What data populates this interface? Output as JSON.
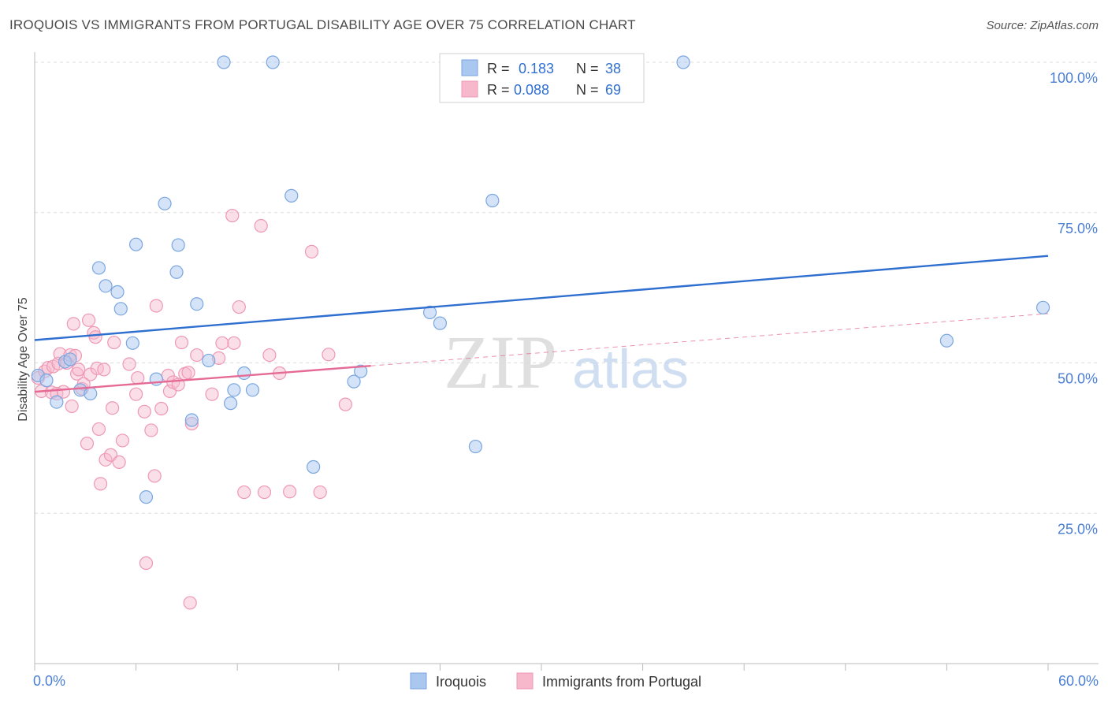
{
  "header": {
    "title": "IROQUOIS VS IMMIGRANTS FROM PORTUGAL DISABILITY AGE OVER 75 CORRELATION CHART",
    "source": "Source: ZipAtlas.com"
  },
  "watermark": {
    "zip": "ZIP",
    "atlas": "atlas"
  },
  "legend_box": {
    "rows": [
      {
        "r_label": "R =",
        "r_value": "0.183",
        "n_label": "N =",
        "n_value": "38"
      },
      {
        "r_label": "R =",
        "r_value": "0.088",
        "n_label": "N =",
        "n_value": "69"
      }
    ]
  },
  "bottom_legend": {
    "items": [
      {
        "label": "Iroquois"
      },
      {
        "label": "Immigrants from Portugal"
      }
    ]
  },
  "colors": {
    "iroquois_fill": "#a9c7ef",
    "iroquois_stroke": "#7aa6e0",
    "iroquois_line": "#2f6fd0",
    "portugal_fill": "#f7b8cc",
    "portugal_stroke": "#ee98b4",
    "portugal_line": "#e56b96",
    "tick_label": "#4a7fd4",
    "grid": "#dddddd"
  },
  "chart_data": {
    "type": "scatter",
    "title": "IROQUOIS VS IMMIGRANTS FROM PORTUGAL DISABILITY AGE OVER 75 CORRELATION CHART",
    "xlabel": "",
    "ylabel": "Disability Age Over 75",
    "xlim": [
      0,
      60
    ],
    "ylim": [
      0,
      101
    ],
    "x_tick_labels": [
      "0.0%",
      "60.0%"
    ],
    "y_tick_labels": [
      "25.0%",
      "50.0%",
      "75.0%",
      "100.0%"
    ],
    "y_ticks": [
      25,
      50,
      75,
      100
    ],
    "grid": true,
    "legend_position": "top-center",
    "series": [
      {
        "name": "Iroquois",
        "R": 0.183,
        "N": 38,
        "trend": {
          "x": [
            0,
            60
          ],
          "y": [
            53.8,
            67.8
          ],
          "style": "solid"
        },
        "points": [
          [
            0.2,
            47.9
          ],
          [
            0.7,
            47.1
          ],
          [
            1.3,
            43.5
          ],
          [
            1.8,
            50.2
          ],
          [
            2.1,
            50.6
          ],
          [
            2.7,
            45.5
          ],
          [
            3.3,
            44.9
          ],
          [
            3.8,
            65.8
          ],
          [
            4.2,
            62.8
          ],
          [
            4.9,
            61.8
          ],
          [
            5.1,
            59.0
          ],
          [
            5.8,
            53.3
          ],
          [
            6.0,
            69.7
          ],
          [
            6.6,
            27.7
          ],
          [
            7.2,
            47.3
          ],
          [
            7.7,
            76.5
          ],
          [
            8.4,
            65.1
          ],
          [
            8.5,
            69.6
          ],
          [
            9.3,
            40.5
          ],
          [
            9.6,
            59.8
          ],
          [
            10.3,
            50.4
          ],
          [
            11.2,
            100.0
          ],
          [
            11.6,
            43.3
          ],
          [
            11.8,
            45.5
          ],
          [
            12.4,
            48.3
          ],
          [
            12.9,
            45.5
          ],
          [
            14.1,
            100.0
          ],
          [
            15.2,
            77.8
          ],
          [
            16.5,
            32.7
          ],
          [
            18.9,
            46.9
          ],
          [
            19.3,
            48.6
          ],
          [
            23.4,
            58.4
          ],
          [
            24.0,
            56.6
          ],
          [
            26.1,
            36.1
          ],
          [
            27.1,
            77.0
          ],
          [
            38.4,
            100.0
          ],
          [
            54.0,
            53.7
          ],
          [
            59.7,
            59.2
          ]
        ]
      },
      {
        "name": "Immigrants from Portugal",
        "R": 0.088,
        "N": 69,
        "trend": {
          "x": [
            0,
            60
          ],
          "y": [
            45.2,
            58.2
          ],
          "style": "solid-then-dashed",
          "solid_until_x": 19.9
        },
        "points": [
          [
            0.2,
            47.5
          ],
          [
            0.4,
            45.3
          ],
          [
            0.6,
            48.6
          ],
          [
            0.8,
            49.2
          ],
          [
            1.0,
            45.1
          ],
          [
            1.1,
            49.4
          ],
          [
            1.3,
            44.9
          ],
          [
            1.4,
            49.9
          ],
          [
            1.5,
            51.5
          ],
          [
            1.7,
            45.2
          ],
          [
            1.9,
            50.0
          ],
          [
            2.1,
            51.3
          ],
          [
            2.2,
            42.8
          ],
          [
            2.3,
            56.5
          ],
          [
            2.4,
            51.2
          ],
          [
            2.5,
            48.2
          ],
          [
            2.6,
            48.9
          ],
          [
            2.8,
            45.7
          ],
          [
            2.9,
            46.5
          ],
          [
            3.1,
            36.6
          ],
          [
            3.2,
            57.1
          ],
          [
            3.3,
            48.1
          ],
          [
            3.5,
            55.0
          ],
          [
            3.6,
            54.3
          ],
          [
            3.7,
            49.1
          ],
          [
            3.8,
            39.0
          ],
          [
            3.9,
            29.9
          ],
          [
            4.1,
            48.9
          ],
          [
            4.2,
            33.9
          ],
          [
            4.5,
            34.7
          ],
          [
            4.6,
            42.5
          ],
          [
            4.7,
            53.4
          ],
          [
            5.0,
            33.5
          ],
          [
            5.2,
            37.1
          ],
          [
            5.6,
            49.8
          ],
          [
            6.0,
            44.8
          ],
          [
            6.1,
            47.5
          ],
          [
            6.5,
            41.9
          ],
          [
            6.6,
            16.7
          ],
          [
            6.9,
            38.8
          ],
          [
            7.1,
            31.2
          ],
          [
            7.2,
            59.5
          ],
          [
            7.5,
            42.4
          ],
          [
            7.9,
            47.9
          ],
          [
            8.0,
            45.3
          ],
          [
            8.2,
            46.8
          ],
          [
            8.5,
            46.4
          ],
          [
            8.7,
            53.4
          ],
          [
            8.9,
            48.2
          ],
          [
            9.1,
            48.4
          ],
          [
            9.2,
            10.1
          ],
          [
            9.3,
            39.9
          ],
          [
            9.6,
            51.3
          ],
          [
            10.5,
            44.8
          ],
          [
            10.9,
            50.8
          ],
          [
            11.1,
            53.3
          ],
          [
            11.7,
            74.5
          ],
          [
            11.8,
            53.3
          ],
          [
            12.1,
            59.3
          ],
          [
            12.4,
            28.5
          ],
          [
            13.4,
            72.8
          ],
          [
            13.6,
            28.5
          ],
          [
            13.9,
            51.3
          ],
          [
            14.5,
            48.3
          ],
          [
            15.1,
            28.6
          ],
          [
            16.4,
            68.5
          ],
          [
            16.9,
            28.5
          ],
          [
            17.4,
            51.4
          ],
          [
            18.4,
            43.1
          ]
        ]
      }
    ]
  }
}
